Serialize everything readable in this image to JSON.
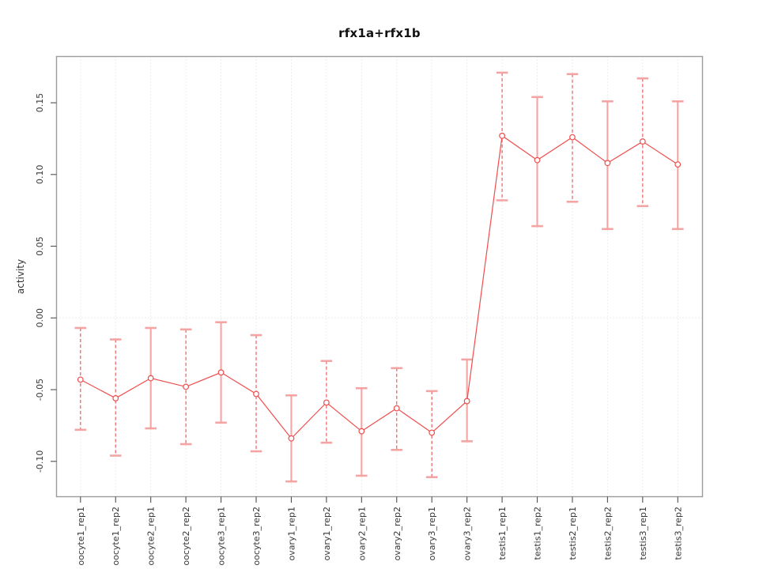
{
  "title": "rfx1a+rfx1b",
  "colors": {
    "series": "#ef4d4d",
    "marker": "#ef4d4d",
    "marker_fill": "#ffffff",
    "stem_dashed": "#ea5a5a",
    "stem_solid": "#f6a0a0",
    "cap": "#f5a0a0",
    "box": "#9c9c9c",
    "grid": "#d9d9d9",
    "tick": "#4f4f4f",
    "tick_label": "#363636",
    "title_color": "#111111"
  },
  "chart_data": {
    "type": "line",
    "title": "rfx1a+rfx1b",
    "xlabel": "",
    "ylabel": "activity",
    "ylim": [
      -0.125,
      0.182
    ],
    "yticks": [
      -0.1,
      -0.05,
      0.0,
      0.05,
      0.1,
      0.15
    ],
    "ytick_labels": [
      "-0.10",
      "-0.05",
      "0.00",
      "0.05",
      "0.10",
      "0.15"
    ],
    "grid": {
      "vertical": "dotted line at every category",
      "horizontal": "dotted line at y=0 only"
    },
    "legend": "none",
    "error_bars": true,
    "points": [
      {
        "label": "oocyte1_rep1",
        "value": -0.043,
        "upper": -0.007,
        "lower": -0.078,
        "stem": "dashed"
      },
      {
        "label": "oocyte1_rep2",
        "value": -0.056,
        "upper": -0.015,
        "lower": -0.096,
        "stem": "dashed"
      },
      {
        "label": "oocyte2_rep1",
        "value": -0.042,
        "upper": -0.007,
        "lower": -0.077,
        "stem": "solid"
      },
      {
        "label": "oocyte2_rep2",
        "value": -0.048,
        "upper": -0.008,
        "lower": -0.088,
        "stem": "dashed"
      },
      {
        "label": "oocyte3_rep1",
        "value": -0.038,
        "upper": -0.003,
        "lower": -0.073,
        "stem": "solid"
      },
      {
        "label": "oocyte3_rep2",
        "value": -0.053,
        "upper": -0.012,
        "lower": -0.093,
        "stem": "dashed"
      },
      {
        "label": "ovary1_rep1",
        "value": -0.084,
        "upper": -0.054,
        "lower": -0.114,
        "stem": "solid"
      },
      {
        "label": "ovary1_rep2",
        "value": -0.059,
        "upper": -0.03,
        "lower": -0.087,
        "stem": "dashed"
      },
      {
        "label": "ovary2_rep1",
        "value": -0.079,
        "upper": -0.049,
        "lower": -0.11,
        "stem": "solid"
      },
      {
        "label": "ovary2_rep2",
        "value": -0.063,
        "upper": -0.035,
        "lower": -0.092,
        "stem": "dashed"
      },
      {
        "label": "ovary3_rep1",
        "value": -0.08,
        "upper": -0.051,
        "lower": -0.111,
        "stem": "dashed"
      },
      {
        "label": "ovary3_rep2",
        "value": -0.058,
        "upper": -0.029,
        "lower": -0.086,
        "stem": "solid"
      },
      {
        "label": "testis1_rep1",
        "value": 0.127,
        "upper": 0.171,
        "lower": 0.082,
        "stem": "dashed"
      },
      {
        "label": "testis1_rep2",
        "value": 0.11,
        "upper": 0.154,
        "lower": 0.064,
        "stem": "solid"
      },
      {
        "label": "testis2_rep1",
        "value": 0.126,
        "upper": 0.17,
        "lower": 0.081,
        "stem": "dashed"
      },
      {
        "label": "testis2_rep2",
        "value": 0.108,
        "upper": 0.151,
        "lower": 0.062,
        "stem": "solid"
      },
      {
        "label": "testis3_rep1",
        "value": 0.123,
        "upper": 0.167,
        "lower": 0.078,
        "stem": "dashed"
      },
      {
        "label": "testis3_rep2",
        "value": 0.107,
        "upper": 0.151,
        "lower": 0.062,
        "stem": "solid"
      }
    ]
  }
}
